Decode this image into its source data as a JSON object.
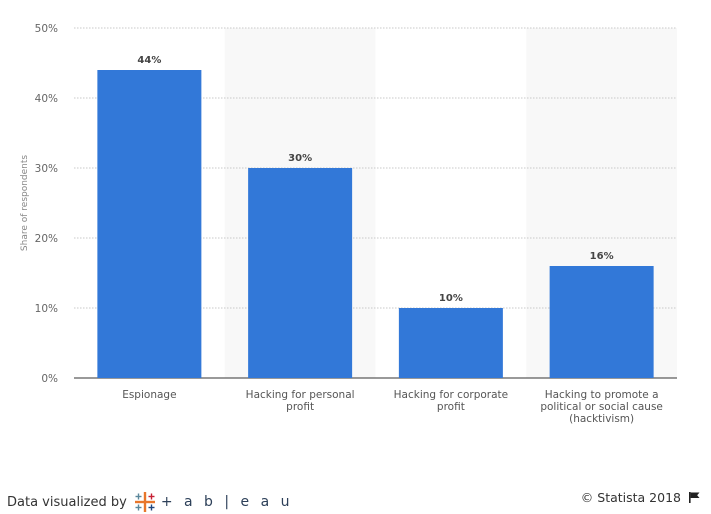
{
  "chart_data": {
    "type": "bar",
    "categories": [
      [
        "Espionage"
      ],
      [
        "Hacking for personal",
        "profit"
      ],
      [
        "Hacking for corporate",
        "profit"
      ],
      [
        "Hacking to promote a",
        "political or social cause",
        "(hacktivism)"
      ]
    ],
    "values": [
      44,
      30,
      10,
      16
    ],
    "value_labels": [
      "44%",
      "30%",
      "10%",
      "16%"
    ],
    "yticks": [
      0,
      10,
      20,
      30,
      40,
      50
    ],
    "ytick_labels": [
      "0%",
      "10%",
      "20%",
      "30%",
      "40%",
      "50%"
    ],
    "ylim": [
      0,
      50
    ],
    "ylabel": "Share of respondents",
    "xlabel": "",
    "title": "",
    "grid": true,
    "bar_color": "#3278d8",
    "alt_band_color": "#f8f8f8"
  },
  "footer": {
    "viz_label": "Data visualized by",
    "tableau_wordmark": "+ a b | e a u",
    "tableau_icon": "tableau-cross-icon",
    "credit": "© Statista 2018",
    "flag_icon": "flag-icon"
  }
}
